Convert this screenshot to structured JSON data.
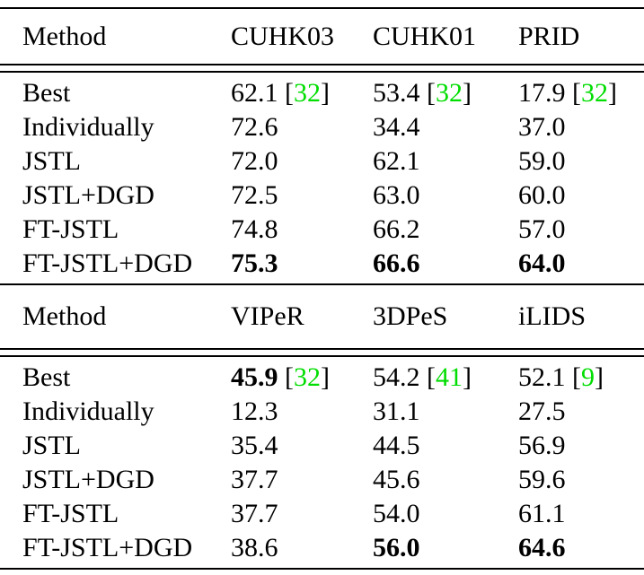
{
  "colors": {
    "citation": "#00dd00",
    "text": "#000000",
    "background": "#ffffff"
  },
  "tables": [
    {
      "name": "table-part-1",
      "headers": [
        "Method",
        "CUHK03",
        "CUHK01",
        "PRID"
      ],
      "rows": [
        {
          "method": "Best",
          "cells": [
            {
              "value": "62.1",
              "bold": false,
              "cite": "32"
            },
            {
              "value": "53.4",
              "bold": false,
              "cite": "32"
            },
            {
              "value": "17.9",
              "bold": false,
              "cite": "32"
            }
          ]
        },
        {
          "method": "Individually",
          "cells": [
            {
              "value": "72.6"
            },
            {
              "value": "34.4"
            },
            {
              "value": "37.0"
            }
          ]
        },
        {
          "method": "JSTL",
          "cells": [
            {
              "value": "72.0"
            },
            {
              "value": "62.1"
            },
            {
              "value": "59.0"
            }
          ]
        },
        {
          "method": "JSTL+DGD",
          "cells": [
            {
              "value": "72.5"
            },
            {
              "value": "63.0"
            },
            {
              "value": "60.0"
            }
          ]
        },
        {
          "method": "FT-JSTL",
          "cells": [
            {
              "value": "74.8"
            },
            {
              "value": "66.2"
            },
            {
              "value": "57.0"
            }
          ]
        },
        {
          "method": "FT-JSTL+DGD",
          "cells": [
            {
              "value": "75.3",
              "bold": true
            },
            {
              "value": "66.6",
              "bold": true
            },
            {
              "value": "64.0",
              "bold": true
            }
          ]
        }
      ]
    },
    {
      "name": "table-part-2",
      "headers": [
        "Method",
        "VIPeR",
        "3DPeS",
        "iLIDS"
      ],
      "rows": [
        {
          "method": "Best",
          "cells": [
            {
              "value": "45.9",
              "bold": true,
              "cite": "32"
            },
            {
              "value": "54.2",
              "bold": false,
              "cite": "41"
            },
            {
              "value": "52.1",
              "bold": false,
              "cite": "9"
            }
          ]
        },
        {
          "method": "Individually",
          "cells": [
            {
              "value": "12.3"
            },
            {
              "value": "31.1"
            },
            {
              "value": "27.5"
            }
          ]
        },
        {
          "method": "JSTL",
          "cells": [
            {
              "value": "35.4"
            },
            {
              "value": "44.5"
            },
            {
              "value": "56.9"
            }
          ]
        },
        {
          "method": "JSTL+DGD",
          "cells": [
            {
              "value": "37.7"
            },
            {
              "value": "45.6"
            },
            {
              "value": "59.6"
            }
          ]
        },
        {
          "method": "FT-JSTL",
          "cells": [
            {
              "value": "37.7"
            },
            {
              "value": "54.0"
            },
            {
              "value": "61.1"
            }
          ]
        },
        {
          "method": "FT-JSTL+DGD",
          "cells": [
            {
              "value": "38.6"
            },
            {
              "value": "56.0",
              "bold": true
            },
            {
              "value": "64.6",
              "bold": true
            }
          ]
        }
      ]
    }
  ]
}
